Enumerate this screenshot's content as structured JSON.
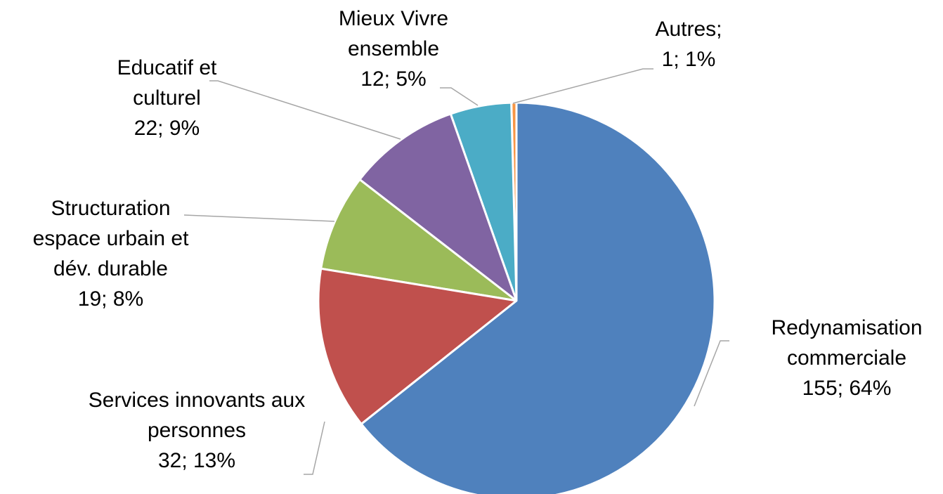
{
  "chart_data": {
    "type": "pie",
    "categories": [
      "Redynamisation commerciale",
      "Services innovants aux personnes",
      "Structuration espace urbain et dév. durable",
      "Educatif et culturel",
      "Mieux Vivre ensemble",
      "Autres;"
    ],
    "values": [
      155,
      32,
      19,
      22,
      12,
      1
    ],
    "value_labels": [
      "155; 64%",
      "32; 13%",
      "19; 8%",
      "22; 9%",
      "12; 5%",
      "1; 1%"
    ],
    "colors": [
      "#4f81bd",
      "#c0504d",
      "#9bbb59",
      "#8064a2",
      "#4bacc6",
      "#f79646"
    ]
  }
}
